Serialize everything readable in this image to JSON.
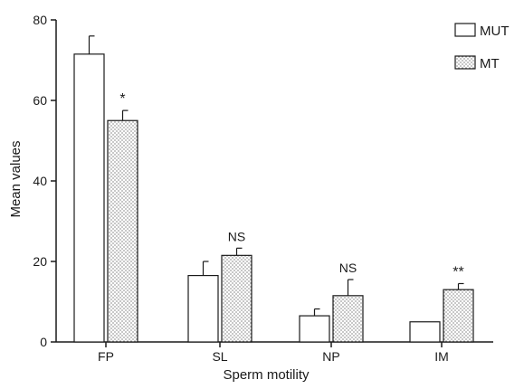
{
  "chart_data": {
    "type": "bar",
    "title": "",
    "xlabel": "Sperm motility",
    "ylabel": "Mean values",
    "categories": [
      "FP",
      "SL",
      "NP",
      "IM"
    ],
    "ylim": [
      0,
      80
    ],
    "yticks": [
      "0",
      "20",
      "40",
      "60",
      "80"
    ],
    "grid": false,
    "legend_position": "top-right",
    "series": [
      {
        "name": "MUT",
        "pattern": "open",
        "values": [
          71.5,
          16.5,
          6.5,
          5.0
        ],
        "error": [
          4.5,
          3.5,
          1.7,
          0.0
        ]
      },
      {
        "name": "MT",
        "pattern": "dotted",
        "values": [
          55.0,
          21.5,
          11.5,
          13.0
        ],
        "error": [
          2.5,
          1.8,
          4.0,
          1.5
        ]
      }
    ],
    "significance": [
      "*",
      "NS",
      "NS",
      "**"
    ],
    "colors": {
      "axis": "#1a1a1a",
      "bar_outline": "#1a1a1a",
      "bar_fill": "#ffffff",
      "dots": "#555555"
    }
  }
}
